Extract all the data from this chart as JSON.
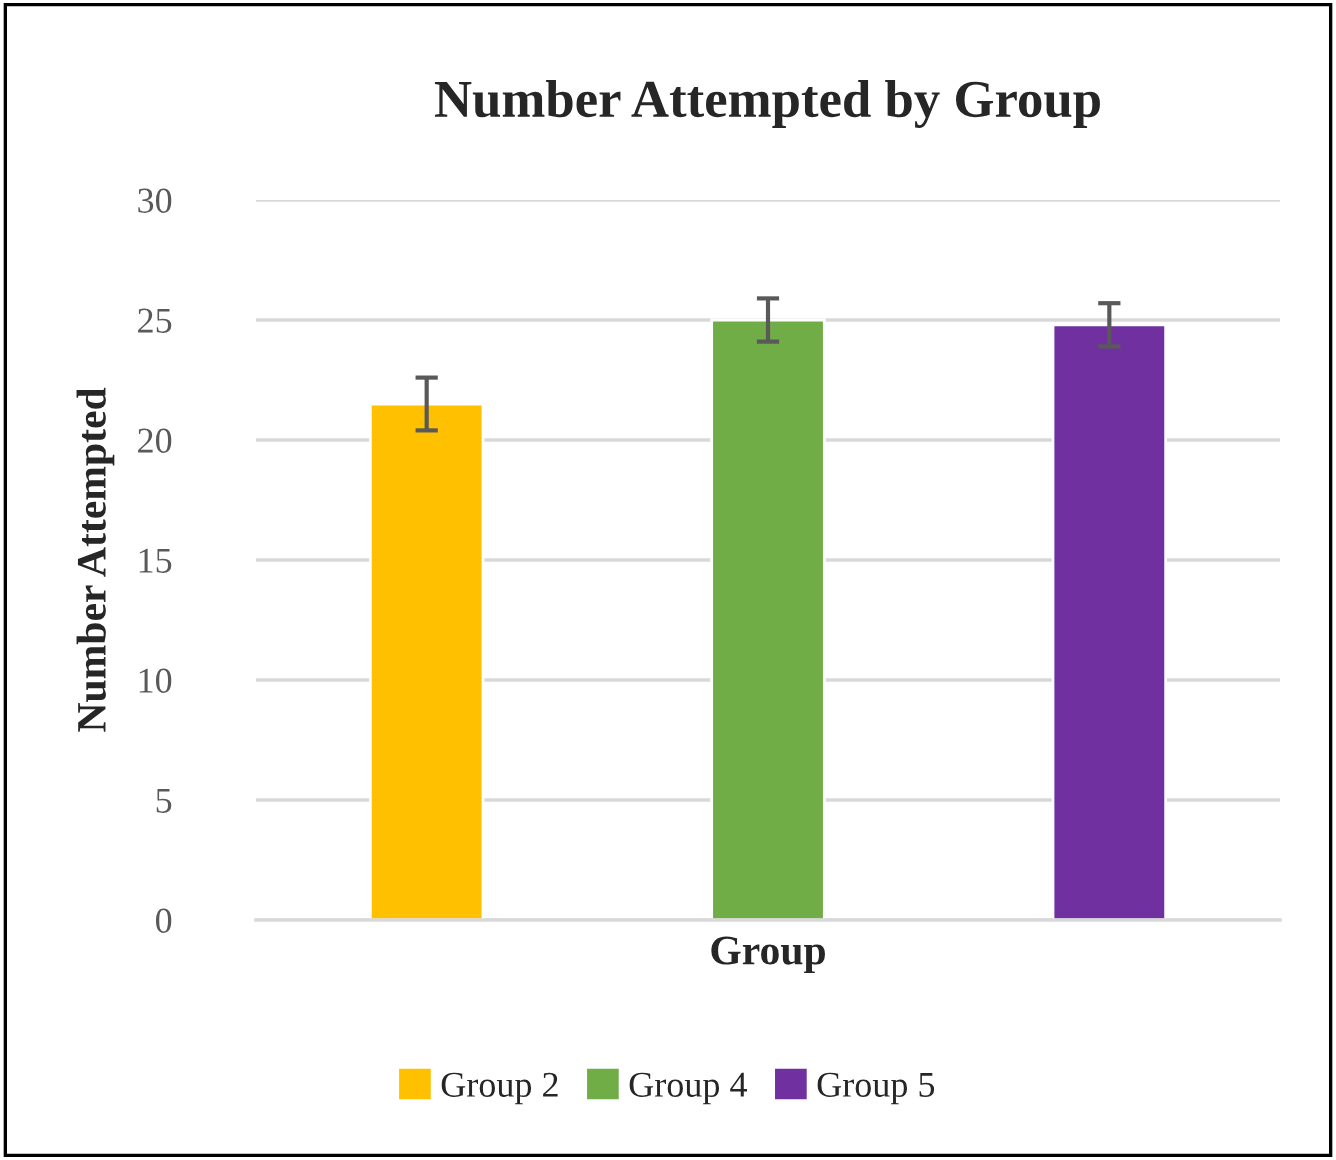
{
  "chart_data": {
    "type": "bar",
    "title": "Number Attempted by Group",
    "xlabel": "Group",
    "ylabel": "Number Attempted",
    "categories": [
      null,
      null,
      null
    ],
    "series": [
      {
        "name": "Group 2",
        "color": "#ffc000",
        "values": [
          21.5,
          null,
          null
        ],
        "errors": [
          1.1,
          null,
          null
        ]
      },
      {
        "name": "Group 4",
        "color": "#70ad47",
        "values": [
          null,
          25.0,
          null
        ],
        "errors": [
          null,
          0.9,
          null
        ]
      },
      {
        "name": "Group 5",
        "color": "#7030a0",
        "values": [
          null,
          null,
          24.8
        ],
        "errors": [
          null,
          null,
          0.9
        ]
      }
    ],
    "ylim": [
      0,
      30
    ],
    "yticks": [
      0,
      5,
      10,
      15,
      20,
      25,
      30
    ],
    "grid": "y",
    "legend": "bottom"
  }
}
